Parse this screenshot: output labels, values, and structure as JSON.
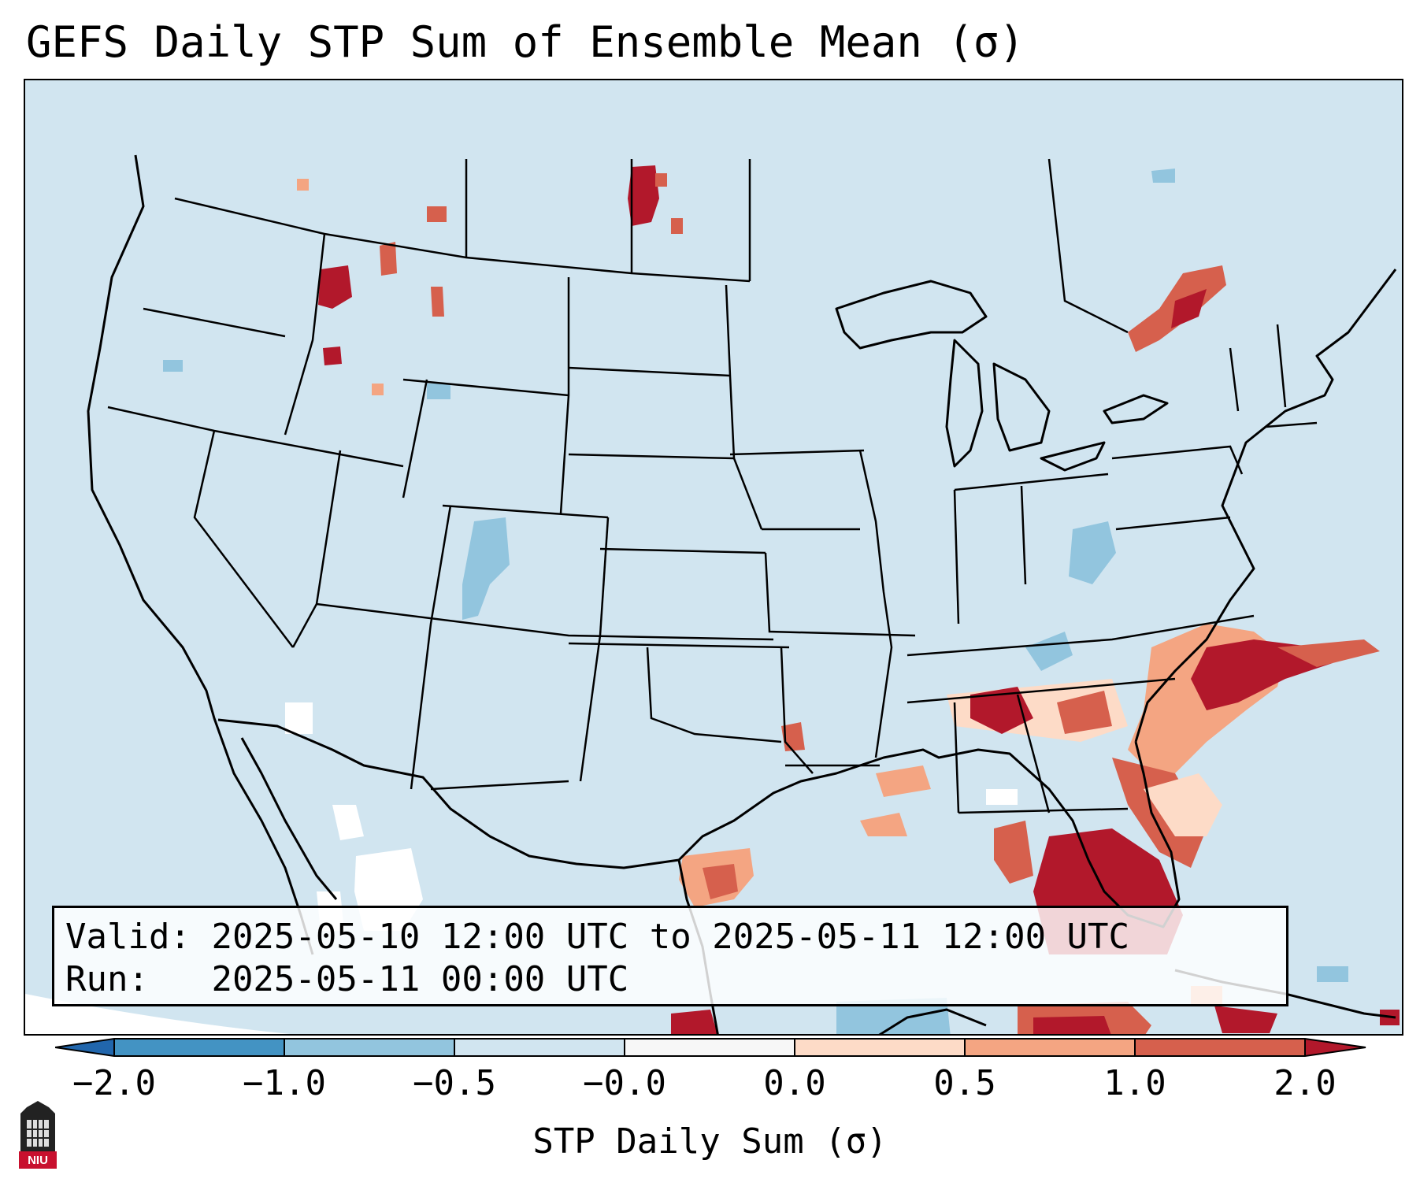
{
  "title": "GEFS Daily STP Sum of Ensemble Mean (σ)",
  "info": {
    "valid_label": "Valid:",
    "valid_value": "2025-05-10 12:00 UTC to 2025-05-11 12:00 UTC",
    "run_label": "Run:",
    "run_value": "2025-05-11 00:00 UTC"
  },
  "colorbar": {
    "label": "STP Daily Sum (σ)",
    "ticks": [
      "−2.0",
      "−1.0",
      "−0.5",
      "−0.0",
      "0.0",
      "0.5",
      "1.0",
      "2.0"
    ],
    "colors": [
      "#2166ac",
      "#4393c3",
      "#92c5de",
      "#d1e5f0",
      "#f7f7f7",
      "#fddbc7",
      "#f4a582",
      "#d6604d",
      "#b2182b"
    ]
  },
  "logo": {
    "text": "NIU",
    "icon": "university-tower-icon"
  }
}
